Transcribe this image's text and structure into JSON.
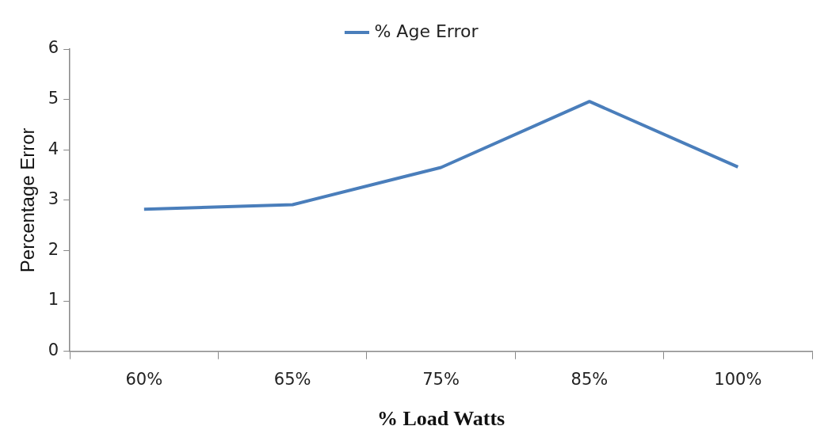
{
  "chart_data": {
    "type": "line",
    "xlabel": "% Load Watts",
    "ylabel": "Percentage Error",
    "categories": [
      "60%",
      "65%",
      "75%",
      "85%",
      "100%"
    ],
    "series": [
      {
        "name": "% Age Error",
        "color": "#4a7ebb",
        "values": [
          2.82,
          2.91,
          3.65,
          4.96,
          3.66
        ]
      }
    ],
    "ylim": [
      0,
      6
    ],
    "yticks": [
      0,
      1,
      2,
      3,
      4,
      5,
      6
    ],
    "grid": false,
    "legend": "top",
    "marker": "none",
    "line_style": "solid"
  }
}
